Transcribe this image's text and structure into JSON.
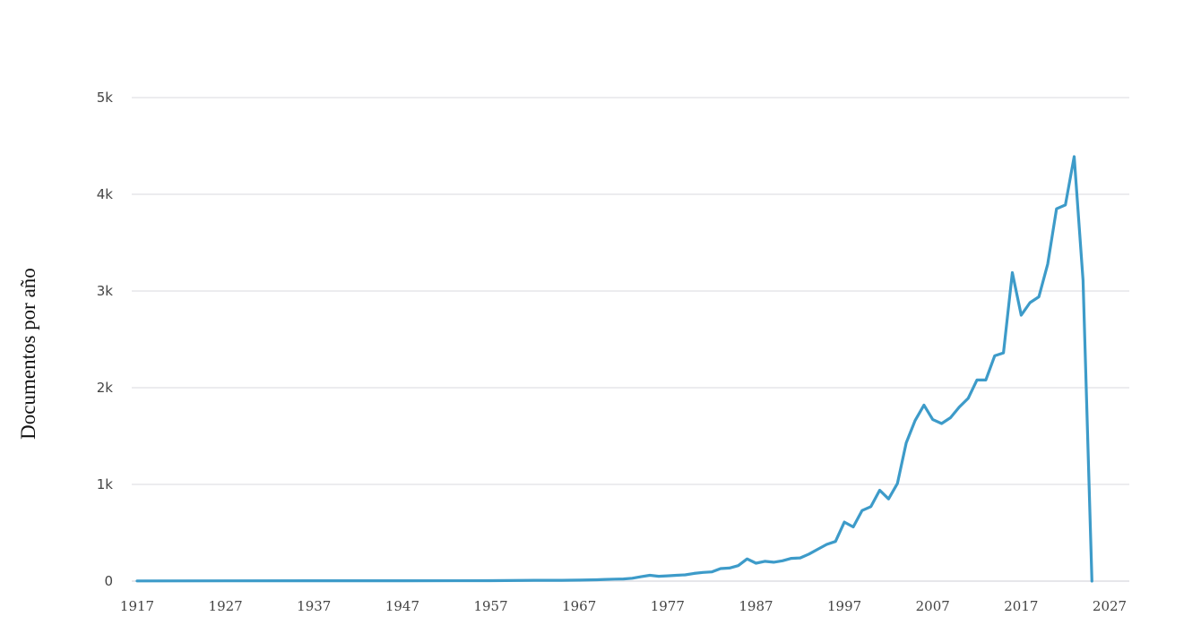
{
  "chart_data": {
    "type": "line",
    "title": "",
    "xlabel": "",
    "ylabel": "Documentos por año",
    "xlim": [
      1917,
      2027
    ],
    "ylim": [
      0,
      5000
    ],
    "grid": true,
    "legend": "none",
    "line_color": "#3d9bc9",
    "grid_color": "#e6e6ea",
    "x_ticks": [
      1917,
      1927,
      1937,
      1947,
      1957,
      1967,
      1977,
      1987,
      1997,
      2007,
      2017,
      2027
    ],
    "y_ticks": [
      0,
      1000,
      2000,
      3000,
      4000,
      5000
    ],
    "y_tick_labels": [
      "0",
      "1k",
      "2k",
      "3k",
      "4k",
      "5k"
    ],
    "series": [
      {
        "name": "Documentos",
        "x": [
          1917,
          1927,
          1937,
          1947,
          1957,
          1962,
          1965,
          1967,
          1969,
          1970,
          1971,
          1972,
          1973,
          1974,
          1975,
          1976,
          1977,
          1978,
          1979,
          1980,
          1981,
          1982,
          1983,
          1984,
          1985,
          1986,
          1987,
          1988,
          1989,
          1990,
          1991,
          1992,
          1993,
          1994,
          1995,
          1996,
          1997,
          1998,
          1999,
          2000,
          2001,
          2002,
          2003,
          2004,
          2005,
          2006,
          2007,
          2008,
          2009,
          2010,
          2011,
          2012,
          2013,
          2014,
          2015,
          2016,
          2017,
          2018,
          2019,
          2020,
          2021,
          2022,
          2023,
          2024,
          2025
        ],
        "values": [
          2,
          3,
          4,
          4,
          5,
          8,
          8,
          10,
          14,
          18,
          20,
          22,
          30,
          45,
          60,
          50,
          55,
          60,
          65,
          80,
          90,
          95,
          130,
          135,
          160,
          230,
          185,
          205,
          195,
          210,
          235,
          240,
          280,
          330,
          380,
          410,
          610,
          560,
          730,
          770,
          940,
          850,
          1010,
          1430,
          1660,
          1820,
          1670,
          1630,
          1690,
          1800,
          1890,
          2080,
          2080,
          2330,
          2360,
          3190,
          2750,
          2880,
          2940,
          3280,
          3850,
          3890,
          4390,
          3110,
          0
        ]
      }
    ]
  },
  "axis": {
    "ylabel": "Documentos por año",
    "x_tick_labels": [
      "1917",
      "1927",
      "1937",
      "1947",
      "1957",
      "1967",
      "1977",
      "1987",
      "1997",
      "2007",
      "2017",
      "2027"
    ],
    "y_tick_labels": [
      "0",
      "1k",
      "2k",
      "3k",
      "4k",
      "5k"
    ]
  }
}
